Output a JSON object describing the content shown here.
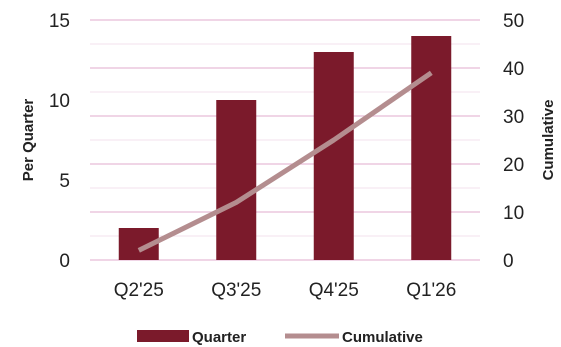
{
  "chart_data": {
    "type": "bar",
    "categories": [
      "Q2'25",
      "Q3'25",
      "Q4'25",
      "Q1'26"
    ],
    "series": [
      {
        "name": "Quarter",
        "type": "bar",
        "axis": "left",
        "values": [
          2,
          10,
          13,
          14
        ]
      },
      {
        "name": "Cumulative",
        "type": "line",
        "axis": "right",
        "values": [
          2,
          12,
          25,
          39
        ]
      }
    ],
    "ylabel": "Per Quarter",
    "ylabel_right": "Cumulative",
    "ylim": [
      0,
      15
    ],
    "ylim_right": [
      0,
      50
    ],
    "yticks": [
      "0",
      "5",
      "10",
      "15"
    ],
    "yticks_right": [
      "0",
      "10",
      "20",
      "30",
      "40",
      "50"
    ],
    "grid": true,
    "legend_position": "bottom",
    "colors": {
      "bar": "#7b1a2b",
      "line": "#b48d8f",
      "grid": "#e8bcd6"
    }
  }
}
